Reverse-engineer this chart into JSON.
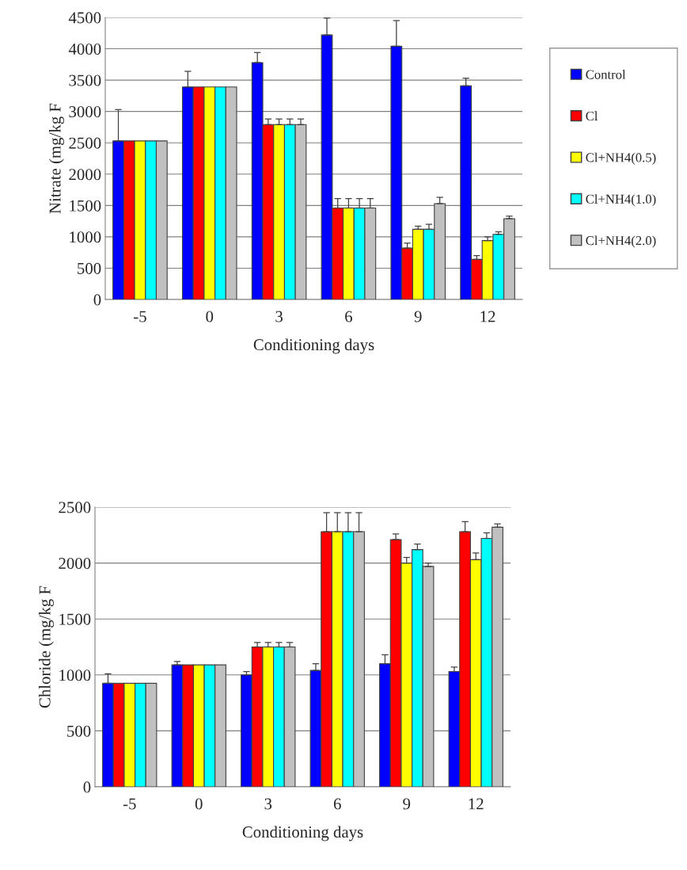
{
  "chart_data": [
    {
      "type": "bar",
      "xlabel": "Conditioning days",
      "ylabel": "Nitrate (mg/kg F",
      "categories": [
        "-5",
        "0",
        "3",
        "6",
        "9",
        "12"
      ],
      "ylim": [
        0,
        4500
      ],
      "yticks": [
        0,
        500,
        1000,
        1500,
        2000,
        2500,
        3000,
        3500,
        4000,
        4500
      ],
      "grid": "y",
      "legend": "right",
      "series": [
        {
          "name": "Control",
          "color": "#0000ff",
          "values": [
            2530,
            3390,
            3780,
            4220,
            4040,
            3410
          ],
          "errors": [
            [
              2530,
              3030
            ],
            [
              3390,
              3640
            ],
            [
              3780,
              3940
            ],
            [
              4220,
              4490
            ],
            [
              4040,
              4450
            ],
            [
              3410,
              3530
            ]
          ]
        },
        {
          "name": "Cl",
          "color": "#ff0000",
          "values": [
            2530,
            3390,
            2790,
            1460,
            820,
            640
          ],
          "errors": [
            null,
            null,
            [
              2790,
              2880
            ],
            [
              1460,
              1610
            ],
            [
              820,
              900
            ],
            [
              640,
              700
            ]
          ]
        },
        {
          "name": "Cl+NH4(0.5)",
          "color": "#ffff00",
          "values": [
            2530,
            3390,
            2790,
            1460,
            1120,
            940
          ],
          "errors": [
            null,
            null,
            [
              2790,
              2880
            ],
            [
              1460,
              1610
            ],
            [
              1120,
              1170
            ],
            [
              940,
              1000
            ]
          ]
        },
        {
          "name": "Cl+NH4(1.0)",
          "color": "#00ffff",
          "values": [
            2530,
            3390,
            2790,
            1460,
            1120,
            1040
          ],
          "errors": [
            null,
            null,
            [
              2790,
              2880
            ],
            [
              1460,
              1610
            ],
            [
              1120,
              1200
            ],
            [
              1040,
              1080
            ]
          ]
        },
        {
          "name": "Cl+NH4(2.0)",
          "color": "#c0c0c0",
          "values": [
            2530,
            3390,
            2790,
            1460,
            1530,
            1290
          ],
          "errors": [
            null,
            null,
            [
              2790,
              2880
            ],
            [
              1460,
              1610
            ],
            [
              1530,
              1630
            ],
            [
              1290,
              1330
            ]
          ]
        }
      ]
    },
    {
      "type": "bar",
      "xlabel": "Conditioning days",
      "ylabel": "Chloride (mg/kg F",
      "categories": [
        "-5",
        "0",
        "3",
        "6",
        "9",
        "12"
      ],
      "ylim": [
        0,
        2500
      ],
      "yticks": [
        0,
        500,
        1000,
        1500,
        2000,
        2500
      ],
      "grid": "y",
      "series": [
        {
          "color": "#0000ff",
          "values": [
            925,
            1090,
            1000,
            1040,
            1100,
            1030
          ],
          "errors": [
            [
              925,
              1010
            ],
            [
              1090,
              1120
            ],
            [
              1000,
              1030
            ],
            [
              1040,
              1100
            ],
            [
              1100,
              1180
            ],
            [
              1030,
              1070
            ]
          ]
        },
        {
          "color": "#ff0000",
          "values": [
            925,
            1090,
            1250,
            2280,
            2210,
            2280
          ],
          "errors": [
            null,
            null,
            [
              1250,
              1290
            ],
            [
              2280,
              2450
            ],
            [
              2210,
              2260
            ],
            [
              2280,
              2370
            ]
          ]
        },
        {
          "color": "#ffff00",
          "values": [
            925,
            1090,
            1250,
            2280,
            2000,
            2030
          ],
          "errors": [
            null,
            null,
            [
              1250,
              1290
            ],
            [
              2280,
              2450
            ],
            [
              2000,
              2050
            ],
            [
              2030,
              2090
            ]
          ]
        },
        {
          "color": "#00ffff",
          "values": [
            925,
            1090,
            1250,
            2280,
            2120,
            2220
          ],
          "errors": [
            null,
            null,
            [
              1250,
              1290
            ],
            [
              2280,
              2450
            ],
            [
              2120,
              2170
            ],
            [
              2220,
              2270
            ]
          ]
        },
        {
          "color": "#c0c0c0",
          "values": [
            925,
            1090,
            1250,
            2280,
            1970,
            2320
          ],
          "errors": [
            null,
            null,
            [
              1250,
              1290
            ],
            [
              2280,
              2450
            ],
            [
              1970,
              2000
            ],
            [
              2320,
              2350
            ]
          ]
        }
      ]
    }
  ]
}
